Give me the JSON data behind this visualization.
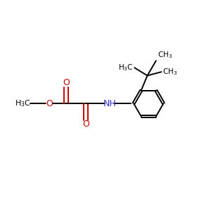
{
  "bg_color": "#ffffff",
  "bond_color": "#000000",
  "oxygen_color": "#cc0000",
  "nitrogen_color": "#3333cc",
  "figsize": [
    3.0,
    3.0
  ],
  "dpi": 100,
  "xlim": [
    0,
    10
  ],
  "ylim": [
    0,
    10
  ]
}
